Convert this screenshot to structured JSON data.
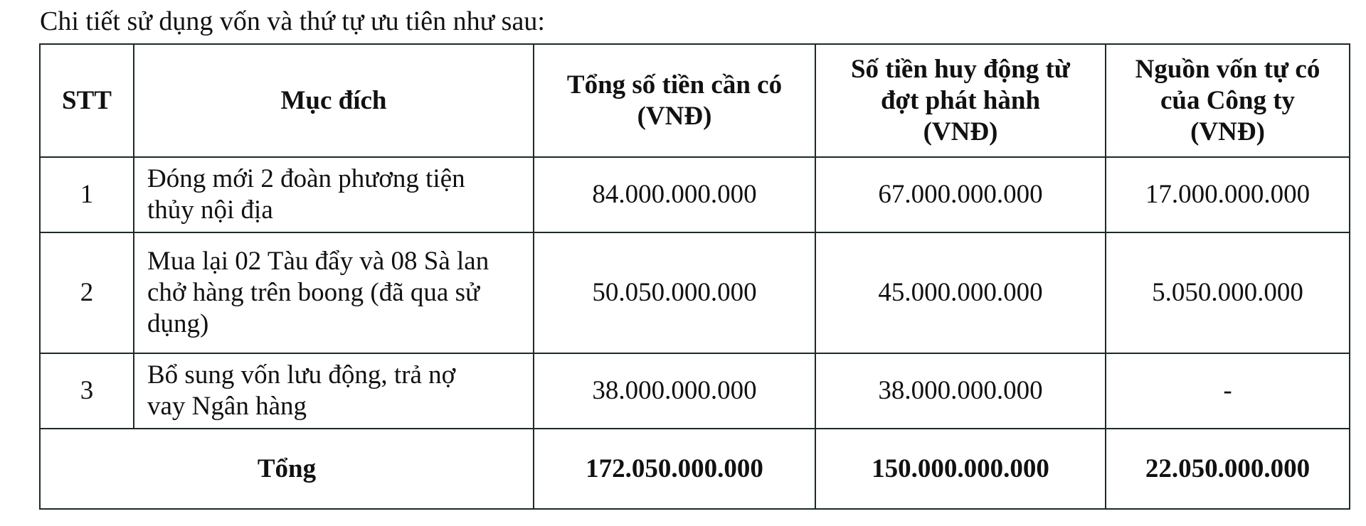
{
  "intro": "Chi tiết sử dụng vốn và thứ tự ưu tiên như sau:",
  "table": {
    "headers": [
      "STT",
      "Mục đích",
      "Tổng số tiền cần có (VNĐ)",
      "Số tiền huy động từ đợt phát hành (VNĐ)",
      "Nguồn vốn tự có của Công ty (VNĐ)"
    ],
    "rows": [
      {
        "stt": "1",
        "purpose": "Đóng mới 2 đoàn phương tiện thủy nội địa",
        "total": "84.000.000.000",
        "raised": "67.000.000.000",
        "own": "17.000.000.000"
      },
      {
        "stt": "2",
        "purpose": "Mua lại 02 Tàu đẩy và 08 Sà lan chở hàng trên boong (đã qua sử dụng)",
        "total": "50.050.000.000",
        "raised": "45.000.000.000",
        "own": "5.050.000.000"
      },
      {
        "stt": "3",
        "purpose": "Bổ sung vốn lưu động, trả nợ vay Ngân hàng",
        "total": "38.000.000.000",
        "raised": "38.000.000.000",
        "own": "-"
      }
    ],
    "total_row": {
      "label": "Tổng",
      "total": "172.050.000.000",
      "raised": "150.000.000.000",
      "own": "22.050.000.000"
    }
  }
}
